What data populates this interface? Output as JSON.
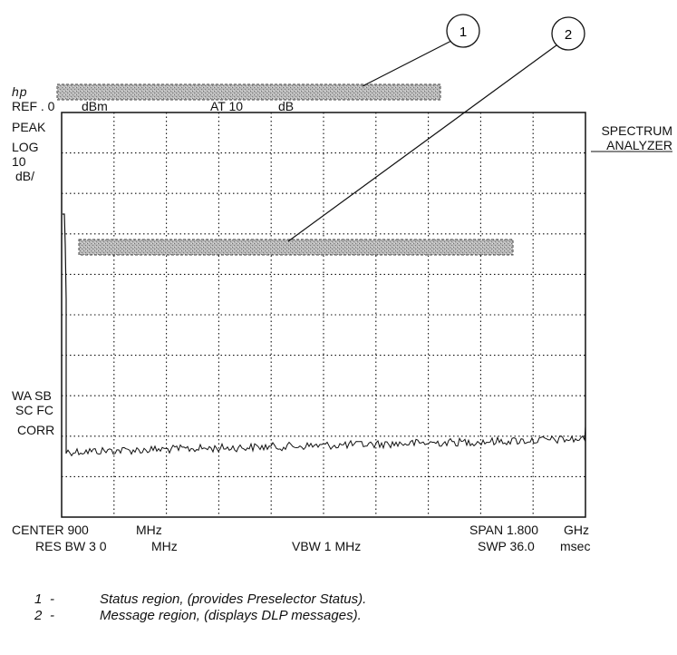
{
  "logo": "hp",
  "header": {
    "ref": "REF . 0",
    "ref_unit": "dBm",
    "atten": "AT 10",
    "atten_unit": "dB"
  },
  "mode": {
    "line1": "SPECTRUM",
    "line2": "ANALYZER"
  },
  "left_labels": {
    "peak": "PEAK",
    "log": "LOG",
    "scale": "10",
    "scale_unit": "dB/",
    "wa_sb": "WA SB",
    "sc_fc": "SC FC",
    "corr": "CORR"
  },
  "footer": {
    "center": "CENTER 900",
    "center_unit": "MHz",
    "res_bw": "RES BW 3 0",
    "res_bw_unit": "MHz",
    "vbw": "VBW 1 MHz",
    "span": "SPAN 1.800",
    "span_unit": "GHz",
    "swp": "SWP 36.0",
    "swp_unit": "msec"
  },
  "callouts": [
    {
      "number": "1"
    },
    {
      "number": "2"
    }
  ],
  "legend": [
    {
      "number": "1",
      "dash": "-",
      "text": "Status region, (provides Preselector Status)."
    },
    {
      "number": "2",
      "dash": "-",
      "text": "Message region, (displays DLP messages)."
    }
  ],
  "colors": {
    "ink": "#111111",
    "region_fill": "#a9a9a9"
  }
}
